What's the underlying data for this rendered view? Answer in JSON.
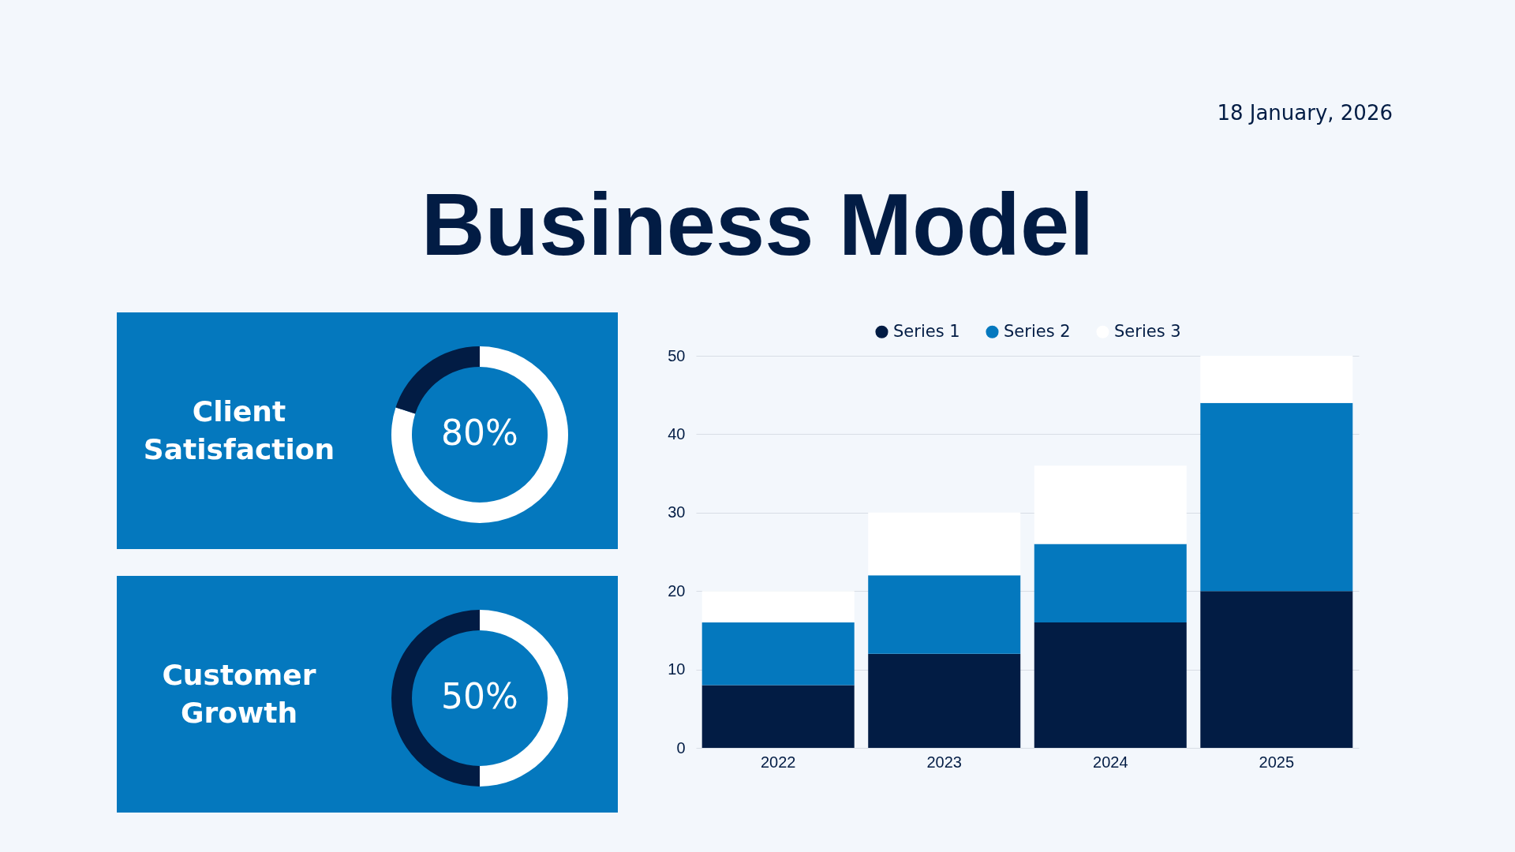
{
  "chart_data": [
    {
      "type": "other",
      "title": "Business Model",
      "annotations": [
        "18 January, 2026"
      ]
    },
    {
      "type": "donut",
      "title": "Client Satisfaction",
      "categories": [
        null,
        null
      ],
      "values": [
        80,
        20
      ],
      "colors": [
        "#ffffff",
        "#021c44"
      ],
      "value_labels": [
        "80%",
        null
      ]
    },
    {
      "type": "donut",
      "title": "Customer Growth",
      "categories": [
        null,
        null
      ],
      "values": [
        50,
        50
      ],
      "colors": [
        "#ffffff",
        "#021c44"
      ],
      "value_labels": [
        "50%",
        null
      ]
    },
    {
      "type": "bar",
      "stacked": true,
      "categories": [
        "2022",
        "2023",
        "2024",
        "2025"
      ],
      "series": [
        {
          "name": "Series 1",
          "color": "#021c44",
          "values": [
            8,
            12,
            16,
            20
          ]
        },
        {
          "name": "Series 2",
          "color": "#0478be",
          "values": [
            8,
            10,
            10,
            24
          ]
        },
        {
          "name": "Series 3",
          "color": "#ffffff",
          "values": [
            4,
            8,
            10,
            6
          ]
        }
      ],
      "ylim": [
        0,
        50
      ],
      "yticks": [
        0,
        10,
        20,
        30,
        40,
        50
      ],
      "grid": "y",
      "legend": "top"
    }
  ]
}
